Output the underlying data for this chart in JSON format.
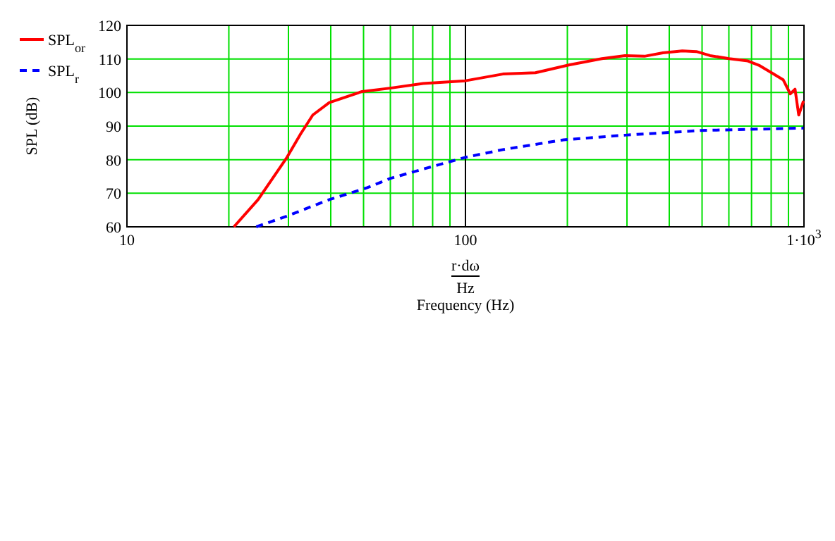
{
  "chart_data": {
    "type": "line",
    "xlabel": "Frequency (Hz)",
    "ylabel": "SPL (dB)",
    "annotations": [
      "r·dω",
      "Hz"
    ],
    "log": "x",
    "xlim": [
      10,
      1000
    ],
    "xticks": [
      10,
      100,
      {
        "value": 1000,
        "label": "1·10$^{3}$"
      }
    ],
    "ylim": [
      60,
      120
    ],
    "yticks": [
      60,
      70,
      80,
      90,
      100,
      110,
      120
    ],
    "grid": true,
    "legend": "left",
    "ref_lines": [
      {
        "axis": "x",
        "value": 100,
        "color": "#000000"
      }
    ],
    "series": [
      {
        "name": "SPL$_{or}$",
        "color": "#ff0000",
        "line_style": "solid",
        "x": [
          20.7,
          24.4,
          29.7,
          32.6,
          35.4,
          39.6,
          49.5,
          59.9,
          75,
          100,
          129,
          161,
          202,
          253,
          296,
          338,
          383,
          437,
          481,
          528,
          601,
          683,
          740,
          802,
          868,
          911,
          941,
          965,
          997
        ],
        "values": [
          60,
          68.1,
          80.7,
          87.7,
          93.3,
          97,
          100.3,
          101.3,
          102.7,
          103.5,
          105.5,
          105.9,
          108.2,
          110.1,
          111,
          110.8,
          111.8,
          112.4,
          112.2,
          111,
          110.1,
          109.4,
          108,
          105.9,
          103.8,
          99.6,
          101,
          93.3,
          97.5
        ]
      },
      {
        "name": "SPL$_{r}$",
        "color": "#0000ff",
        "line_style": "dashed",
        "x": [
          24.1,
          29.7,
          39.6,
          51.1,
          59.9,
          75,
          100,
          129,
          195,
          296,
          497,
          997
        ],
        "values": [
          60,
          63.2,
          68.1,
          71.6,
          74.4,
          77.2,
          80.7,
          83,
          85.9,
          87.3,
          88.7,
          89.4
        ]
      }
    ]
  }
}
